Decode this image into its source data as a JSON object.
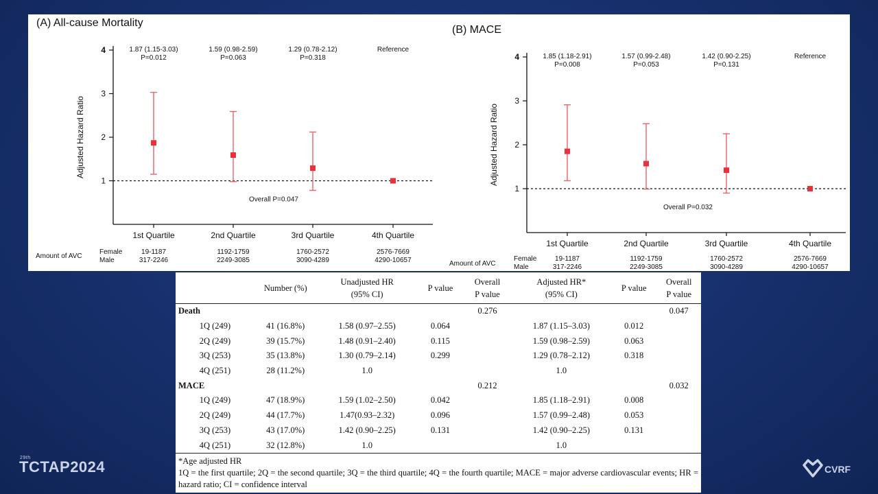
{
  "colors": {
    "marker": "#e8313a",
    "bar": "#e8636a",
    "axis": "#111111"
  },
  "chart_data": [
    {
      "type": "scatter",
      "title": "(A) All-cause Mortality",
      "ylabel": "Adjusted Hazard Ratio",
      "ylim": [
        0,
        4
      ],
      "yticks": [
        "1",
        "2",
        "3",
        "4"
      ],
      "categories": [
        "1st Quartile",
        "2nd Quartile",
        "3rd Quartile",
        "4th Quartile"
      ],
      "values": [
        1.87,
        1.59,
        1.29,
        1.0
      ],
      "ci_low": [
        1.15,
        0.98,
        0.78,
        1.0
      ],
      "ci_high": [
        3.03,
        2.59,
        2.12,
        1.0
      ],
      "annot_hr": [
        "1.87 (1.15-3.03)",
        "1.59 (0.98-2.59)",
        "1.29 (0.78-2.12)",
        "Reference"
      ],
      "annot_p": [
        "P=0.012",
        "P=0.063",
        "P=0.318",
        ""
      ],
      "overall": "Overall P=0.047",
      "amount_label": "Amount of AVC",
      "female_label": "Female",
      "male_label": "Male",
      "female": [
        "19-1187",
        "1192-1759",
        "1760-2572",
        "2576-7669"
      ],
      "male": [
        "317-2246",
        "2249-3085",
        "3090-4289",
        "4290-10657"
      ]
    },
    {
      "type": "scatter",
      "title": "(B) MACE",
      "ylabel": "Adjusted Hazard Ratio",
      "ylim": [
        0,
        4
      ],
      "yticks": [
        "1",
        "2",
        "3",
        "4"
      ],
      "categories": [
        "1st Quartile",
        "2nd Quartile",
        "3rd Quartile",
        "4th Quartile"
      ],
      "values": [
        1.85,
        1.57,
        1.42,
        1.0
      ],
      "ci_low": [
        1.18,
        0.99,
        0.9,
        1.0
      ],
      "ci_high": [
        2.91,
        2.48,
        2.25,
        1.0
      ],
      "annot_hr": [
        "1.85 (1.18-2.91)",
        "1.57 (0.99-2.48)",
        "1.42 (0.90-2.25)",
        "Reference"
      ],
      "annot_p": [
        "P=0.008",
        "P=0.053",
        "P=0.131",
        ""
      ],
      "overall": "Overall P=0.032",
      "amount_label": "Amount of AVC",
      "female_label": "Female",
      "male_label": "Male",
      "female": [
        "19-1187",
        "1192-1759",
        "1760-2572",
        "2576-7669"
      ],
      "male": [
        "317-2246",
        "2249-3085",
        "3090-4289",
        "4290-10657"
      ]
    }
  ],
  "table": {
    "headers": [
      [
        "",
        ""
      ],
      [
        "Number (%)",
        ""
      ],
      [
        "Unadjusted HR",
        "(95% CI)"
      ],
      [
        "P value",
        ""
      ],
      [
        "Overall",
        "P value"
      ],
      [
        "Adjusted HR*",
        "(95% CI)"
      ],
      [
        "P value",
        ""
      ],
      [
        "Overall",
        "P value"
      ]
    ],
    "groups": [
      {
        "name": "Death",
        "overall_unadj": "0.276",
        "overall_adj": "0.047",
        "rows": [
          [
            "1Q (249)",
            "41 (16.8%)",
            "1.58 (0.97–2.55)",
            "0.064",
            "1.87 (1.15–3.03)",
            "0.012"
          ],
          [
            "2Q (249)",
            "39 (15.7%)",
            "1.48 (0.91–2.40)",
            "0.115",
            "1.59 (0.98–2.59)",
            "0.063"
          ],
          [
            "3Q (253)",
            "35 (13.8%)",
            "1.30 (0.79–2.14)",
            "0.299",
            "1.29 (0.78–2.12)",
            "0.318"
          ],
          [
            "4Q (251)",
            "28 (11.2%)",
            "1.0",
            "",
            "1.0",
            ""
          ]
        ]
      },
      {
        "name": "MACE",
        "overall_unadj": "0.212",
        "overall_adj": "0.032",
        "rows": [
          [
            "1Q (249)",
            "47 (18.9%)",
            "1.59 (1.02–2.50)",
            "0.042",
            "1.85 (1.18–2.91)",
            "0.008"
          ],
          [
            "2Q (249)",
            "44 (17.7%)",
            "1.47(0.93–2.32)",
            "0.096",
            "1.57 (0.99–2.48)",
            "0.053"
          ],
          [
            "3Q (253)",
            "43 (17.0%)",
            "1.42 (0.90–2.25)",
            "0.131",
            "1.42 (0.90–2.25)",
            "0.131"
          ],
          [
            "4Q (251)",
            "32 (12.8%)",
            "1.0",
            "",
            "1.0",
            ""
          ]
        ]
      }
    ],
    "footnote1": "*Age adjusted HR",
    "footnote2": "1Q = the first quartile; 2Q = the second quartile; 3Q = the third quartile; 4Q = the fourth quartile; MACE = major adverse cardiovascular events; HR = hazard ratio; CI = confidence interval"
  },
  "branding": {
    "edition": "29th",
    "left_logo": "TCTAP2024",
    "right_logo": "CVRF"
  }
}
